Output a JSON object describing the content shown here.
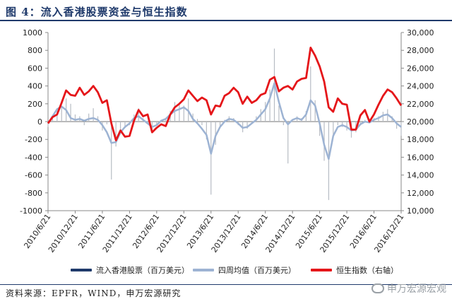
{
  "figure_title": "图 4：流入香港股票资金与恒生指数",
  "source_text": "资料来源：EPFR，WIND，申万宏源研究",
  "watermark_text": "申万宏源宏观",
  "legend": [
    {
      "label": "流入香港股票（百万美元）",
      "color": "#1f3a6b"
    },
    {
      "label": "四周均值（百万美元）",
      "color": "#9db3d3"
    },
    {
      "label": "恒生指数（右轴）",
      "color": "#e5161a"
    }
  ],
  "chart_data": {
    "type": "bar+line",
    "title": "",
    "x_tick_labels": [
      "2010/6/21",
      "2010/12/21",
      "2011/6/21",
      "2011/12/21",
      "2012/6/21",
      "2012/12/21",
      "2013/6/21",
      "2013/12/21",
      "2014/6/21",
      "2014/12/21",
      "2015/6/21",
      "2015/12/21",
      "2016/6/21",
      "2016/12/21"
    ],
    "x_start": "2010/6/21",
    "x_end": "2016/12/21",
    "y_left": {
      "min": -1000,
      "max": 1000,
      "ticks": [
        1000,
        800,
        600,
        400,
        200,
        0,
        -200,
        -400,
        -600,
        -800,
        -1000
      ],
      "ylabel": ""
    },
    "y_right": {
      "min": 10000,
      "max": 30000,
      "ticks": [
        "30,000",
        "28,000",
        "26,000",
        "24,000",
        "22,000",
        "20,000",
        "18,000",
        "16,000",
        "14,000",
        "12,000",
        "10,000"
      ],
      "ylabel": ""
    },
    "series": [
      {
        "name": "流入香港股票（百万美元）",
        "type": "bar",
        "axis": "left",
        "color": "#1f3a6b",
        "points": [
          [
            "2010/6/21",
            -60
          ],
          [
            "2010/7/21",
            40
          ],
          [
            "2010/8/21",
            120
          ],
          [
            "2010/9/21",
            180
          ],
          [
            "2010/10/21",
            260
          ],
          [
            "2010/11/21",
            200
          ],
          [
            "2010/12/21",
            80
          ],
          [
            "2011/1/21",
            60
          ],
          [
            "2011/2/21",
            -40
          ],
          [
            "2011/3/21",
            90
          ],
          [
            "2011/4/21",
            150
          ],
          [
            "2011/5/21",
            60
          ],
          [
            "2011/6/21",
            -100
          ],
          [
            "2011/7/21",
            -30
          ],
          [
            "2011/8/21",
            -650
          ],
          [
            "2011/9/21",
            -280
          ],
          [
            "2011/10/21",
            -120
          ],
          [
            "2011/11/21",
            -60
          ],
          [
            "2011/12/21",
            -40
          ],
          [
            "2012/1/21",
            80
          ],
          [
            "2012/2/21",
            150
          ],
          [
            "2012/3/21",
            40
          ],
          [
            "2012/4/21",
            -20
          ],
          [
            "2012/5/21",
            -90
          ],
          [
            "2012/6/21",
            -40
          ],
          [
            "2012/7/21",
            20
          ],
          [
            "2012/8/21",
            40
          ],
          [
            "2012/9/21",
            120
          ],
          [
            "2012/10/21",
            220
          ],
          [
            "2012/11/21",
            200
          ],
          [
            "2012/12/21",
            180
          ],
          [
            "2013/1/21",
            260
          ],
          [
            "2013/2/21",
            90
          ],
          [
            "2013/3/21",
            30
          ],
          [
            "2013/4/21",
            -40
          ],
          [
            "2013/5/21",
            -200
          ],
          [
            "2013/6/21",
            -820
          ],
          [
            "2013/7/21",
            -260
          ],
          [
            "2013/8/21",
            -60
          ],
          [
            "2013/9/21",
            20
          ],
          [
            "2013/10/21",
            60
          ],
          [
            "2013/11/21",
            40
          ],
          [
            "2013/12/21",
            -40
          ],
          [
            "2014/1/21",
            -120
          ],
          [
            "2014/2/21",
            -80
          ],
          [
            "2014/3/21",
            -20
          ],
          [
            "2014/4/21",
            60
          ],
          [
            "2014/5/21",
            140
          ],
          [
            "2014/6/21",
            220
          ],
          [
            "2014/7/21",
            360
          ],
          [
            "2014/8/21",
            820
          ],
          [
            "2014/9/21",
            180
          ],
          [
            "2014/10/21",
            -40
          ],
          [
            "2014/11/21",
            -470
          ],
          [
            "2014/12/21",
            20
          ],
          [
            "2015/1/21",
            60
          ],
          [
            "2015/2/21",
            40
          ],
          [
            "2015/3/21",
            120
          ],
          [
            "2015/4/21",
            620
          ],
          [
            "2015/5/21",
            240
          ],
          [
            "2015/6/21",
            -160
          ],
          [
            "2015/7/21",
            -440
          ],
          [
            "2015/8/21",
            -880
          ],
          [
            "2015/9/21",
            -180
          ],
          [
            "2015/10/21",
            -40
          ],
          [
            "2015/11/21",
            -60
          ],
          [
            "2015/12/21",
            -100
          ],
          [
            "2016/1/21",
            -180
          ],
          [
            "2016/2/21",
            -120
          ],
          [
            "2016/3/21",
            -30
          ],
          [
            "2016/4/21",
            20
          ],
          [
            "2016/5/21",
            -20
          ],
          [
            "2016/6/21",
            40
          ],
          [
            "2016/7/21",
            60
          ],
          [
            "2016/8/21",
            110
          ],
          [
            "2016/9/21",
            140
          ],
          [
            "2016/10/21",
            60
          ],
          [
            "2016/11/21",
            -80
          ],
          [
            "2016/12/21",
            -160
          ]
        ]
      },
      {
        "name": "四周均值（百万美元）",
        "type": "line",
        "axis": "left",
        "color": "#9db3d3",
        "points": [
          [
            "2010/6/21",
            -20
          ],
          [
            "2010/7/21",
            60
          ],
          [
            "2010/8/21",
            140
          ],
          [
            "2010/9/21",
            170
          ],
          [
            "2010/10/21",
            130
          ],
          [
            "2010/11/21",
            40
          ],
          [
            "2010/12/21",
            20
          ],
          [
            "2011/1/21",
            30
          ],
          [
            "2011/2/21",
            10
          ],
          [
            "2011/3/21",
            30
          ],
          [
            "2011/4/21",
            40
          ],
          [
            "2011/5/21",
            20
          ],
          [
            "2011/6/21",
            -40
          ],
          [
            "2011/7/21",
            -120
          ],
          [
            "2011/8/21",
            -240
          ],
          [
            "2011/9/21",
            -230
          ],
          [
            "2011/10/21",
            -120
          ],
          [
            "2011/11/21",
            -60
          ],
          [
            "2011/12/21",
            -20
          ],
          [
            "2012/1/21",
            40
          ],
          [
            "2012/2/21",
            60
          ],
          [
            "2012/3/21",
            20
          ],
          [
            "2012/4/21",
            -20
          ],
          [
            "2012/5/21",
            -60
          ],
          [
            "2012/6/21",
            -40
          ],
          [
            "2012/7/21",
            10
          ],
          [
            "2012/8/21",
            30
          ],
          [
            "2012/9/21",
            80
          ],
          [
            "2012/10/21",
            120
          ],
          [
            "2012/11/21",
            140
          ],
          [
            "2012/12/21",
            160
          ],
          [
            "2013/1/21",
            120
          ],
          [
            "2013/2/21",
            30
          ],
          [
            "2013/3/21",
            -20
          ],
          [
            "2013/4/21",
            -80
          ],
          [
            "2013/5/21",
            -150
          ],
          [
            "2013/6/21",
            -360
          ],
          [
            "2013/7/21",
            -160
          ],
          [
            "2013/8/21",
            -60
          ],
          [
            "2013/9/21",
            0
          ],
          [
            "2013/10/21",
            30
          ],
          [
            "2013/11/21",
            20
          ],
          [
            "2013/12/21",
            -20
          ],
          [
            "2014/1/21",
            -70
          ],
          [
            "2014/2/21",
            -60
          ],
          [
            "2014/3/21",
            -20
          ],
          [
            "2014/4/21",
            20
          ],
          [
            "2014/5/21",
            80
          ],
          [
            "2014/6/21",
            140
          ],
          [
            "2014/7/21",
            260
          ],
          [
            "2014/8/21",
            430
          ],
          [
            "2014/9/21",
            220
          ],
          [
            "2014/10/21",
            40
          ],
          [
            "2014/11/21",
            -30
          ],
          [
            "2014/12/21",
            20
          ],
          [
            "2015/1/21",
            40
          ],
          [
            "2015/2/21",
            20
          ],
          [
            "2015/3/21",
            80
          ],
          [
            "2015/4/21",
            240
          ],
          [
            "2015/5/21",
            180
          ],
          [
            "2015/6/21",
            -20
          ],
          [
            "2015/7/21",
            -260
          ],
          [
            "2015/8/21",
            -420
          ],
          [
            "2015/9/21",
            -160
          ],
          [
            "2015/10/21",
            -60
          ],
          [
            "2015/11/21",
            -40
          ],
          [
            "2015/12/21",
            -60
          ],
          [
            "2016/1/21",
            -100
          ],
          [
            "2016/2/21",
            -90
          ],
          [
            "2016/3/21",
            -30
          ],
          [
            "2016/4/21",
            0
          ],
          [
            "2016/5/21",
            -10
          ],
          [
            "2016/6/21",
            20
          ],
          [
            "2016/7/21",
            40
          ],
          [
            "2016/8/21",
            70
          ],
          [
            "2016/9/21",
            80
          ],
          [
            "2016/10/21",
            40
          ],
          [
            "2016/11/21",
            -20
          ],
          [
            "2016/12/21",
            -60
          ]
        ]
      },
      {
        "name": "恒生指数（右轴）",
        "type": "line",
        "axis": "right",
        "color": "#e5161a",
        "points": [
          [
            "2010/6/21",
            19800
          ],
          [
            "2010/7/21",
            20500
          ],
          [
            "2010/8/21",
            20800
          ],
          [
            "2010/9/21",
            22100
          ],
          [
            "2010/10/21",
            23500
          ],
          [
            "2010/11/21",
            23000
          ],
          [
            "2010/12/21",
            22900
          ],
          [
            "2011/1/21",
            23800
          ],
          [
            "2011/2/21",
            23000
          ],
          [
            "2011/3/21",
            23400
          ],
          [
            "2011/4/21",
            24000
          ],
          [
            "2011/5/21",
            23300
          ],
          [
            "2011/6/21",
            22100
          ],
          [
            "2011/7/21",
            22400
          ],
          [
            "2011/8/21",
            19800
          ],
          [
            "2011/9/21",
            17900
          ],
          [
            "2011/10/21",
            19000
          ],
          [
            "2011/11/21",
            18300
          ],
          [
            "2011/12/21",
            18400
          ],
          [
            "2012/1/21",
            20100
          ],
          [
            "2012/2/21",
            21300
          ],
          [
            "2012/3/21",
            20600
          ],
          [
            "2012/4/21",
            20800
          ],
          [
            "2012/5/21",
            18800
          ],
          [
            "2012/6/21",
            19300
          ],
          [
            "2012/7/21",
            19700
          ],
          [
            "2012/8/21",
            19500
          ],
          [
            "2012/9/21",
            20800
          ],
          [
            "2012/10/21",
            21600
          ],
          [
            "2012/11/21",
            22000
          ],
          [
            "2012/12/21",
            22500
          ],
          [
            "2013/1/21",
            23500
          ],
          [
            "2013/2/21",
            22900
          ],
          [
            "2013/3/21",
            22300
          ],
          [
            "2013/4/21",
            22700
          ],
          [
            "2013/5/21",
            22400
          ],
          [
            "2013/6/21",
            20800
          ],
          [
            "2013/7/21",
            21800
          ],
          [
            "2013/8/21",
            21700
          ],
          [
            "2013/9/21",
            22900
          ],
          [
            "2013/10/21",
            23200
          ],
          [
            "2013/11/21",
            23800
          ],
          [
            "2013/12/21",
            23300
          ],
          [
            "2014/1/21",
            22000
          ],
          [
            "2014/2/21",
            22800
          ],
          [
            "2014/3/21",
            22100
          ],
          [
            "2014/4/21",
            22400
          ],
          [
            "2014/5/21",
            23000
          ],
          [
            "2014/6/21",
            23200
          ],
          [
            "2014/7/21",
            24700
          ],
          [
            "2014/8/21",
            25000
          ],
          [
            "2014/9/21",
            23400
          ],
          [
            "2014/10/21",
            23800
          ],
          [
            "2014/11/21",
            24000
          ],
          [
            "2014/12/21",
            23600
          ],
          [
            "2015/1/21",
            24500
          ],
          [
            "2015/2/21",
            24800
          ],
          [
            "2015/3/21",
            24900
          ],
          [
            "2015/4/21",
            28300
          ],
          [
            "2015/5/21",
            27400
          ],
          [
            "2015/6/21",
            26200
          ],
          [
            "2015/7/21",
            24500
          ],
          [
            "2015/8/21",
            21600
          ],
          [
            "2015/9/21",
            21100
          ],
          [
            "2015/10/21",
            22600
          ],
          [
            "2015/11/21",
            22000
          ],
          [
            "2015/12/21",
            21900
          ],
          [
            "2016/1/21",
            19100
          ],
          [
            "2016/2/21",
            19100
          ],
          [
            "2016/3/21",
            20700
          ],
          [
            "2016/4/21",
            21300
          ],
          [
            "2016/5/21",
            20000
          ],
          [
            "2016/6/21",
            20800
          ],
          [
            "2016/7/21",
            21900
          ],
          [
            "2016/8/21",
            22900
          ],
          [
            "2016/9/21",
            23600
          ],
          [
            "2016/10/21",
            23300
          ],
          [
            "2016/11/21",
            22600
          ],
          [
            "2016/12/21",
            21800
          ]
        ]
      }
    ],
    "grid": false,
    "legend_position": "bottom"
  }
}
